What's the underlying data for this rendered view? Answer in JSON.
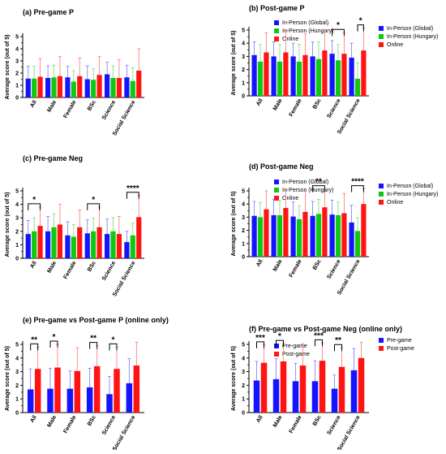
{
  "colors": {
    "blue": "#1414ff",
    "green": "#10c810",
    "red": "#ff1414",
    "error_blue": "#7777ff",
    "error_green": "#77dd77",
    "error_red": "#ff7777",
    "axis": "#000000"
  },
  "chart_data": [
    {
      "id": "a",
      "type": "bar",
      "title": "(a) Pre-game P",
      "ylabel": "Average score (out of 5)",
      "ylim": [
        0,
        5
      ],
      "yticks": [
        "0",
        "1",
        "2",
        "3",
        "4",
        "5"
      ],
      "categories": [
        "All",
        "Male",
        "Female",
        "BSc",
        "Science",
        "Social Science"
      ],
      "series": [
        {
          "name": "In-Person (Global)",
          "color": "blue",
          "values": [
            1.55,
            1.6,
            1.65,
            1.5,
            1.9,
            1.65
          ],
          "errors": [
            1.0,
            1.0,
            0.9,
            1.1,
            1.0,
            1.0
          ]
        },
        {
          "name": "In-Person (Hungary)",
          "color": "green",
          "values": [
            1.55,
            1.65,
            1.3,
            1.45,
            1.6,
            1.35
          ],
          "errors": [
            1.0,
            1.0,
            0.9,
            0.9,
            1.0,
            1.1
          ]
        },
        {
          "name": "Online",
          "color": "red",
          "values": [
            1.7,
            1.75,
            1.75,
            1.85,
            1.6,
            2.2
          ],
          "errors": [
            1.5,
            1.6,
            1.5,
            1.5,
            1.5,
            1.8
          ]
        }
      ],
      "legend": "right",
      "significance": []
    },
    {
      "id": "b",
      "type": "bar",
      "title": "(b) Post-game P",
      "ylabel": "Average score (out of 5)",
      "ylim": [
        0,
        5
      ],
      "yticks": [
        "0",
        "1",
        "2",
        "3",
        "4",
        "5"
      ],
      "categories": [
        "All",
        "Male",
        "Female",
        "BSc",
        "Science",
        "Social Science"
      ],
      "series": [
        {
          "name": "In-Person (Global)",
          "color": "blue",
          "values": [
            3.1,
            3.0,
            3.0,
            3.0,
            3.2,
            2.9
          ],
          "errors": [
            1.0,
            1.1,
            1.0,
            1.1,
            1.0,
            1.1
          ]
        },
        {
          "name": "In-Person (Hungary)",
          "color": "green",
          "values": [
            2.6,
            2.6,
            2.6,
            2.8,
            2.7,
            1.3
          ],
          "errors": [
            1.3,
            1.3,
            1.3,
            1.3,
            1.2,
            1.2
          ]
        },
        {
          "name": "Online",
          "color": "red",
          "values": [
            3.3,
            3.3,
            3.1,
            3.45,
            3.2,
            3.45
          ],
          "errors": [
            1.5,
            1.7,
            1.6,
            1.6,
            1.6,
            2.1
          ]
        }
      ],
      "legend": "right",
      "significance": [
        {
          "category": 4,
          "from": 0,
          "to": 2,
          "label": "*"
        },
        {
          "category": 5,
          "from": 1,
          "to": 2,
          "label": "*"
        }
      ]
    },
    {
      "id": "c",
      "type": "bar",
      "title": "(c) Pre-game Neg",
      "ylabel": "Average score (out of 5)",
      "ylim": [
        0,
        5
      ],
      "yticks": [
        "0",
        "1",
        "2",
        "3",
        "4",
        "5"
      ],
      "categories": [
        "All",
        "Male",
        "Female",
        "BSc",
        "Science",
        "Social Science"
      ],
      "series": [
        {
          "name": "In-Person (Global)",
          "color": "blue",
          "values": [
            1.8,
            2.0,
            1.7,
            1.85,
            1.8,
            1.2
          ],
          "errors": [
            1.0,
            1.1,
            1.0,
            1.0,
            1.1,
            0.8
          ]
        },
        {
          "name": "In-Person (Hungary)",
          "color": "green",
          "values": [
            2.0,
            2.3,
            1.6,
            2.0,
            2.0,
            1.7
          ],
          "errors": [
            1.0,
            1.0,
            0.9,
            1.0,
            1.0,
            0.9
          ]
        },
        {
          "name": "Online",
          "color": "red",
          "values": [
            2.4,
            2.5,
            2.3,
            2.3,
            1.8,
            3.05
          ],
          "errors": [
            1.4,
            1.5,
            1.3,
            1.5,
            1.3,
            1.6
          ]
        }
      ],
      "legend": "right",
      "significance": [
        {
          "category": 0,
          "from": 0,
          "to": 2,
          "label": "*"
        },
        {
          "category": 3,
          "from": 0,
          "to": 2,
          "label": "*"
        },
        {
          "category": 5,
          "from": 0,
          "to": 2,
          "label": "****"
        }
      ]
    },
    {
      "id": "d",
      "type": "bar",
      "title": "(d) Post-game Neg",
      "ylabel": "Average score (out of 5)",
      "ylim": [
        0,
        5
      ],
      "yticks": [
        "0",
        "1",
        "2",
        "3",
        "4",
        "5"
      ],
      "categories": [
        "All",
        "Male",
        "Female",
        "BSc",
        "Science",
        "Social Science"
      ],
      "series": [
        {
          "name": "In-Person (Global)",
          "color": "blue",
          "values": [
            3.1,
            3.15,
            3.05,
            3.1,
            3.2,
            2.6
          ],
          "errors": [
            1.1,
            1.2,
            1.1,
            1.1,
            1.1,
            1.3
          ]
        },
        {
          "name": "In-Person (Hungary)",
          "color": "green",
          "values": [
            3.0,
            3.15,
            2.85,
            3.25,
            3.15,
            1.95
          ],
          "errors": [
            1.1,
            1.1,
            1.0,
            1.1,
            1.0,
            1.0
          ]
        },
        {
          "name": "Online",
          "color": "red",
          "values": [
            3.6,
            3.7,
            3.4,
            3.75,
            3.3,
            4.0
          ],
          "errors": [
            1.4,
            1.4,
            1.6,
            1.4,
            1.5,
            1.3
          ]
        }
      ],
      "legend": "right",
      "significance": [
        {
          "category": 3,
          "from": 0,
          "to": 2,
          "label": "**"
        },
        {
          "category": 5,
          "from": 0,
          "to": 2,
          "label": "****"
        }
      ]
    },
    {
      "id": "e",
      "type": "bar",
      "title": "(e) Pre-game vs Post-game P (online only)",
      "ylabel": "Average score (out of 5)",
      "ylim": [
        0,
        5
      ],
      "yticks": [
        "0",
        "1",
        "2",
        "3",
        "4",
        "5"
      ],
      "categories": [
        "All",
        "Male",
        "Female",
        "BSc",
        "Science",
        "Social Science"
      ],
      "series": [
        {
          "name": "Pre-game",
          "color": "blue",
          "values": [
            1.7,
            1.75,
            1.75,
            1.85,
            1.35,
            2.15
          ],
          "errors": [
            1.5,
            1.5,
            1.3,
            1.4,
            1.3,
            1.8
          ]
        },
        {
          "name": "Post-game",
          "color": "red",
          "values": [
            3.2,
            3.3,
            3.05,
            3.4,
            3.2,
            3.45
          ],
          "errors": [
            1.6,
            1.7,
            1.7,
            1.5,
            1.6,
            2.0
          ]
        }
      ],
      "legend": "right",
      "significance": [
        {
          "category": 0,
          "from": 0,
          "to": 1,
          "label": "**"
        },
        {
          "category": 1,
          "from": 0,
          "to": 1,
          "label": "*"
        },
        {
          "category": 3,
          "from": 0,
          "to": 1,
          "label": "**"
        },
        {
          "category": 4,
          "from": 0,
          "to": 1,
          "label": "*"
        }
      ]
    },
    {
      "id": "f",
      "type": "bar",
      "title": "(f) Pre-game vs Post-game Neg (online only)",
      "ylabel": "Average score (out of 5)",
      "ylim": [
        0,
        5
      ],
      "yticks": [
        "0",
        "1",
        "2",
        "3",
        "4",
        "5"
      ],
      "categories": [
        "All",
        "Male",
        "Female",
        "BSc",
        "Science",
        "Social Science"
      ],
      "series": [
        {
          "name": "Pre-game",
          "color": "blue",
          "values": [
            2.35,
            2.45,
            2.3,
            2.3,
            1.75,
            3.1
          ],
          "errors": [
            1.4,
            1.5,
            1.3,
            1.5,
            1.0,
            1.6
          ]
        },
        {
          "name": "Post-game",
          "color": "red",
          "values": [
            3.65,
            3.75,
            3.45,
            3.8,
            3.35,
            4.0
          ],
          "errors": [
            1.3,
            1.3,
            1.6,
            1.3,
            1.4,
            1.3
          ]
        }
      ],
      "legend": "right",
      "significance": [
        {
          "category": 0,
          "from": 0,
          "to": 1,
          "label": "***"
        },
        {
          "category": 1,
          "from": 0,
          "to": 1,
          "label": "*"
        },
        {
          "category": 3,
          "from": 0,
          "to": 1,
          "label": "***"
        },
        {
          "category": 4,
          "from": 0,
          "to": 1,
          "label": "**"
        }
      ]
    }
  ]
}
